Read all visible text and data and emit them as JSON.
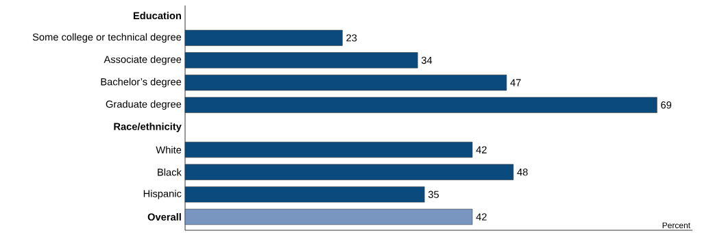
{
  "chart_data": {
    "type": "bar",
    "orientation": "horizontal",
    "xlabel": "Percent",
    "categories": [
      "**Education**",
      "Some college or technical degree",
      "Associate degree",
      "Bachelor’s degree",
      "Graduate degree",
      "**Race/ethnicity**",
      "White",
      "Black",
      "Hispanic",
      "**Overall**"
    ],
    "values": [
      null,
      23,
      34,
      47,
      69,
      null,
      42,
      48,
      35,
      42
    ],
    "colors": [
      null,
      "#0b4a7d",
      "#0b4a7d",
      "#0b4a7d",
      "#0b4a7d",
      null,
      "#0b4a7d",
      "#0b4a7d",
      "#0b4a7d",
      "#7896bf"
    ],
    "data_labels": true
  }
}
